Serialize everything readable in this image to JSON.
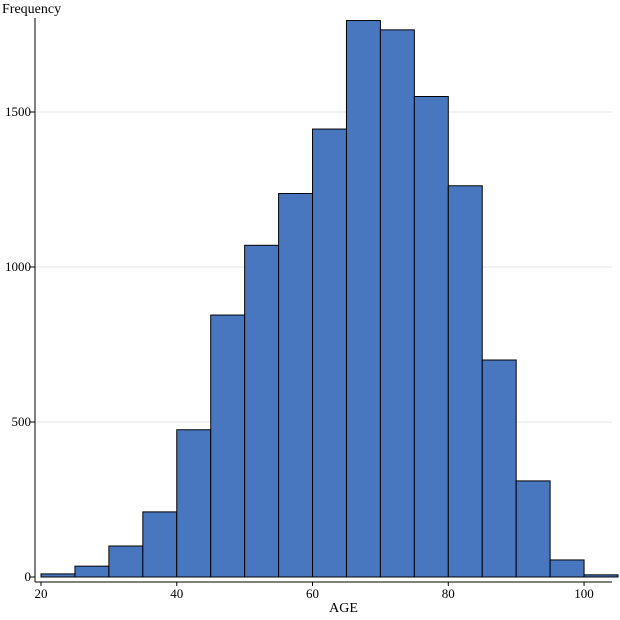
{
  "chart_data": {
    "type": "bar",
    "subtype": "histogram",
    "title": "",
    "xlabel": "AGE",
    "ylabel": "Frequency",
    "bin_width": 5,
    "bins": [
      {
        "start": 20,
        "end": 25,
        "value": 10
      },
      {
        "start": 25,
        "end": 30,
        "value": 35
      },
      {
        "start": 30,
        "end": 35,
        "value": 100
      },
      {
        "start": 35,
        "end": 40,
        "value": 210
      },
      {
        "start": 40,
        "end": 45,
        "value": 475
      },
      {
        "start": 45,
        "end": 50,
        "value": 845
      },
      {
        "start": 50,
        "end": 55,
        "value": 1070
      },
      {
        "start": 55,
        "end": 60,
        "value": 1237
      },
      {
        "start": 60,
        "end": 65,
        "value": 1445
      },
      {
        "start": 65,
        "end": 70,
        "value": 1795
      },
      {
        "start": 70,
        "end": 75,
        "value": 1765
      },
      {
        "start": 75,
        "end": 80,
        "value": 1550
      },
      {
        "start": 80,
        "end": 85,
        "value": 1262
      },
      {
        "start": 85,
        "end": 90,
        "value": 700
      },
      {
        "start": 90,
        "end": 95,
        "value": 310
      },
      {
        "start": 95,
        "end": 100,
        "value": 55
      },
      {
        "start": 100,
        "end": 105,
        "value": 7
      }
    ],
    "xlim": [
      20,
      105
    ],
    "ylim": [
      0,
      1800
    ],
    "xticks": [
      20,
      40,
      60,
      80,
      100
    ],
    "yticks": [
      0,
      500,
      1000,
      1500
    ],
    "horizontal_grid": true,
    "vertical_grid": false,
    "bar_color": "#4877c0",
    "bar_edge_color": "#000000",
    "grid_color": "#e6e6e6",
    "legend": "none"
  }
}
